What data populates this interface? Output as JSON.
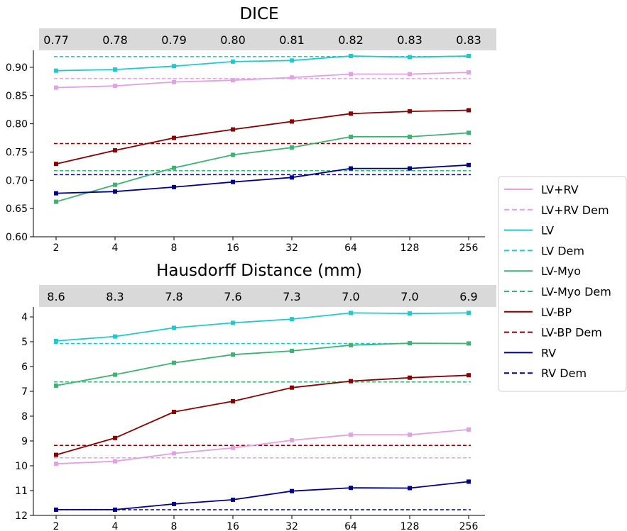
{
  "legend": [
    {
      "label": "LV+RV",
      "color": "#e2a1e2",
      "dashed": false
    },
    {
      "label": "LV+RV Dem",
      "color": "#e2a1e2",
      "dashed": true
    },
    {
      "label": "LV",
      "color": "#1fc9cd",
      "dashed": false
    },
    {
      "label": "LV Dem",
      "color": "#1fc9cd",
      "dashed": true
    },
    {
      "label": "LV-Myo",
      "color": "#3cb371",
      "dashed": false
    },
    {
      "label": "LV-Myo Dem",
      "color": "#3cb371",
      "dashed": true
    },
    {
      "label": "LV-BP",
      "color": "#8b0000",
      "dashed": false
    },
    {
      "label": "LV-BP Dem",
      "color": "#8b0000",
      "dashed": true
    },
    {
      "label": "RV",
      "color": "#00008b",
      "dashed": false
    },
    {
      "label": "RV Dem",
      "color": "#00008b",
      "dashed": true
    }
  ],
  "legend_placement": "right, centered vertically",
  "chart_data": [
    {
      "type": "line",
      "title": "DICE",
      "x_scale": "log2",
      "categories": [
        "2",
        "4",
        "8",
        "16",
        "32",
        "64",
        "128",
        "256"
      ],
      "top_labels": [
        "0.77",
        "0.78",
        "0.79",
        "0.80",
        "0.81",
        "0.82",
        "0.83",
        "0.83"
      ],
      "ylim": [
        0.6,
        0.93
      ],
      "yticks": [
        "0.60",
        "0.65",
        "0.70",
        "0.75",
        "0.80",
        "0.85",
        "0.90"
      ],
      "y_inverted": false,
      "series": [
        {
          "name": "LV+RV",
          "color": "#e2a1e2",
          "values": [
            0.864,
            0.867,
            0.874,
            0.877,
            0.882,
            0.888,
            0.888,
            0.891
          ]
        },
        {
          "name": "LV",
          "color": "#1fc9cd",
          "values": [
            0.894,
            0.896,
            0.902,
            0.91,
            0.912,
            0.92,
            0.918,
            0.92
          ]
        },
        {
          "name": "LV-Myo",
          "color": "#3cb371",
          "values": [
            0.662,
            0.692,
            0.722,
            0.745,
            0.758,
            0.777,
            0.777,
            0.784
          ]
        },
        {
          "name": "LV-BP",
          "color": "#8b0000",
          "values": [
            0.729,
            0.753,
            0.775,
            0.79,
            0.804,
            0.818,
            0.822,
            0.824
          ]
        },
        {
          "name": "RV",
          "color": "#00008b",
          "values": [
            0.677,
            0.68,
            0.688,
            0.697,
            0.705,
            0.721,
            0.721,
            0.727
          ]
        }
      ],
      "baselines": [
        {
          "name": "LV+RV Dem",
          "color": "#e2a1e2",
          "value": 0.88
        },
        {
          "name": "LV Dem",
          "color": "#1fc9cd",
          "value": 0.919
        },
        {
          "name": "LV-Myo Dem",
          "color": "#3cb371",
          "value": 0.717
        },
        {
          "name": "LV-BP Dem",
          "color": "#8b0000",
          "value": 0.765
        },
        {
          "name": "RV Dem",
          "color": "#00008b",
          "value": 0.71
        }
      ]
    },
    {
      "type": "line",
      "title": "Hausdorff Distance (mm)",
      "x_scale": "log2",
      "categories": [
        "2",
        "4",
        "8",
        "16",
        "32",
        "64",
        "128",
        "256"
      ],
      "top_labels": [
        "8.6",
        "8.3",
        "7.8",
        "7.6",
        "7.3",
        "7.0",
        "7.0",
        "6.9"
      ],
      "ylim": [
        12,
        3.6
      ],
      "yticks": [
        "4",
        "5",
        "6",
        "7",
        "8",
        "9",
        "10",
        "11",
        "12"
      ],
      "y_inverted": true,
      "series": [
        {
          "name": "LV+RV",
          "color": "#e2a1e2",
          "values": [
            9.92,
            9.82,
            9.5,
            9.28,
            8.97,
            8.75,
            8.75,
            8.54
          ]
        },
        {
          "name": "LV",
          "color": "#1fc9cd",
          "values": [
            4.97,
            4.79,
            4.44,
            4.24,
            4.09,
            3.84,
            3.86,
            3.84
          ]
        },
        {
          "name": "LV-Myo",
          "color": "#3cb371",
          "values": [
            6.77,
            6.33,
            5.85,
            5.52,
            5.37,
            5.14,
            5.06,
            5.07
          ]
        },
        {
          "name": "LV-BP",
          "color": "#8b0000",
          "values": [
            9.56,
            8.88,
            7.83,
            7.4,
            6.85,
            6.59,
            6.45,
            6.35
          ]
        },
        {
          "name": "RV",
          "color": "#00008b",
          "values": [
            11.77,
            11.77,
            11.54,
            11.37,
            11.02,
            10.89,
            10.9,
            10.64
          ]
        }
      ],
      "baselines": [
        {
          "name": "LV+RV Dem",
          "color": "#e2a1e2",
          "value": 9.68
        },
        {
          "name": "LV Dem",
          "color": "#1fc9cd",
          "value": 5.07
        },
        {
          "name": "LV-Myo Dem",
          "color": "#3cb371",
          "value": 6.62
        },
        {
          "name": "LV-BP Dem",
          "color": "#8b0000",
          "value": 9.18
        },
        {
          "name": "RV Dem",
          "color": "#00008b",
          "value": 11.77
        }
      ]
    }
  ]
}
